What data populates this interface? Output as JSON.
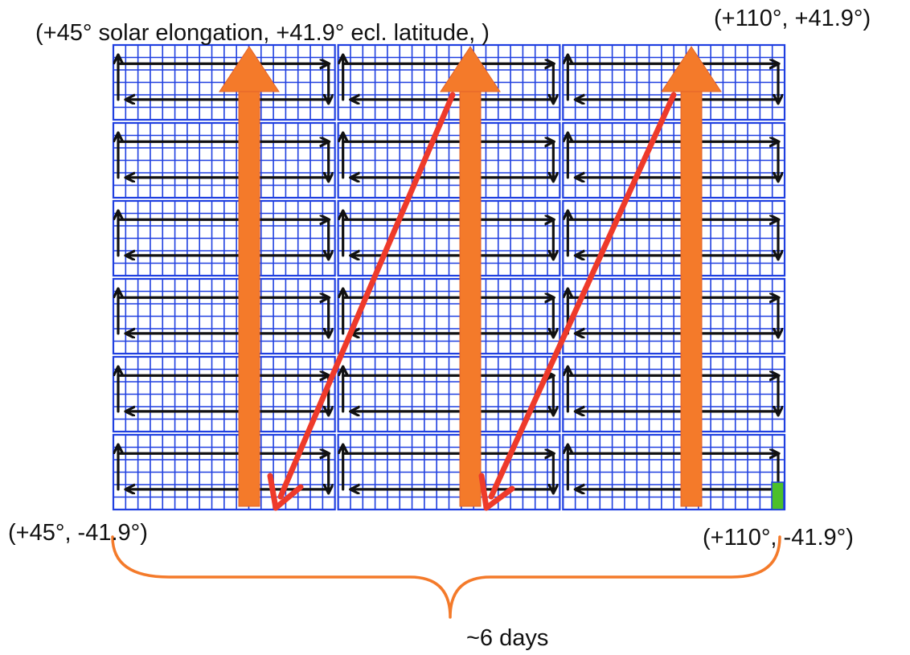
{
  "labels": {
    "top_left": "(+45° solar elongation, +41.9° ecl. latitude, )",
    "top_right": "(+110°, +41.9°)",
    "bottom_left": "(+45°, -41.9°)",
    "bottom_right": "(+110°, -41.9°)",
    "duration": "~6 days"
  },
  "grid": {
    "tile_columns": 3,
    "tile_rows": 6,
    "cells_per_tile_x": 18,
    "cells_per_tile_y": 6
  },
  "colors": {
    "grid": "#1f3fe0",
    "scan_path": "#111111",
    "column_arrow": "#f47a2a",
    "return_arrow": "#ee3a2a",
    "brace": "#f47a2a",
    "marker": "#4cc02a"
  }
}
